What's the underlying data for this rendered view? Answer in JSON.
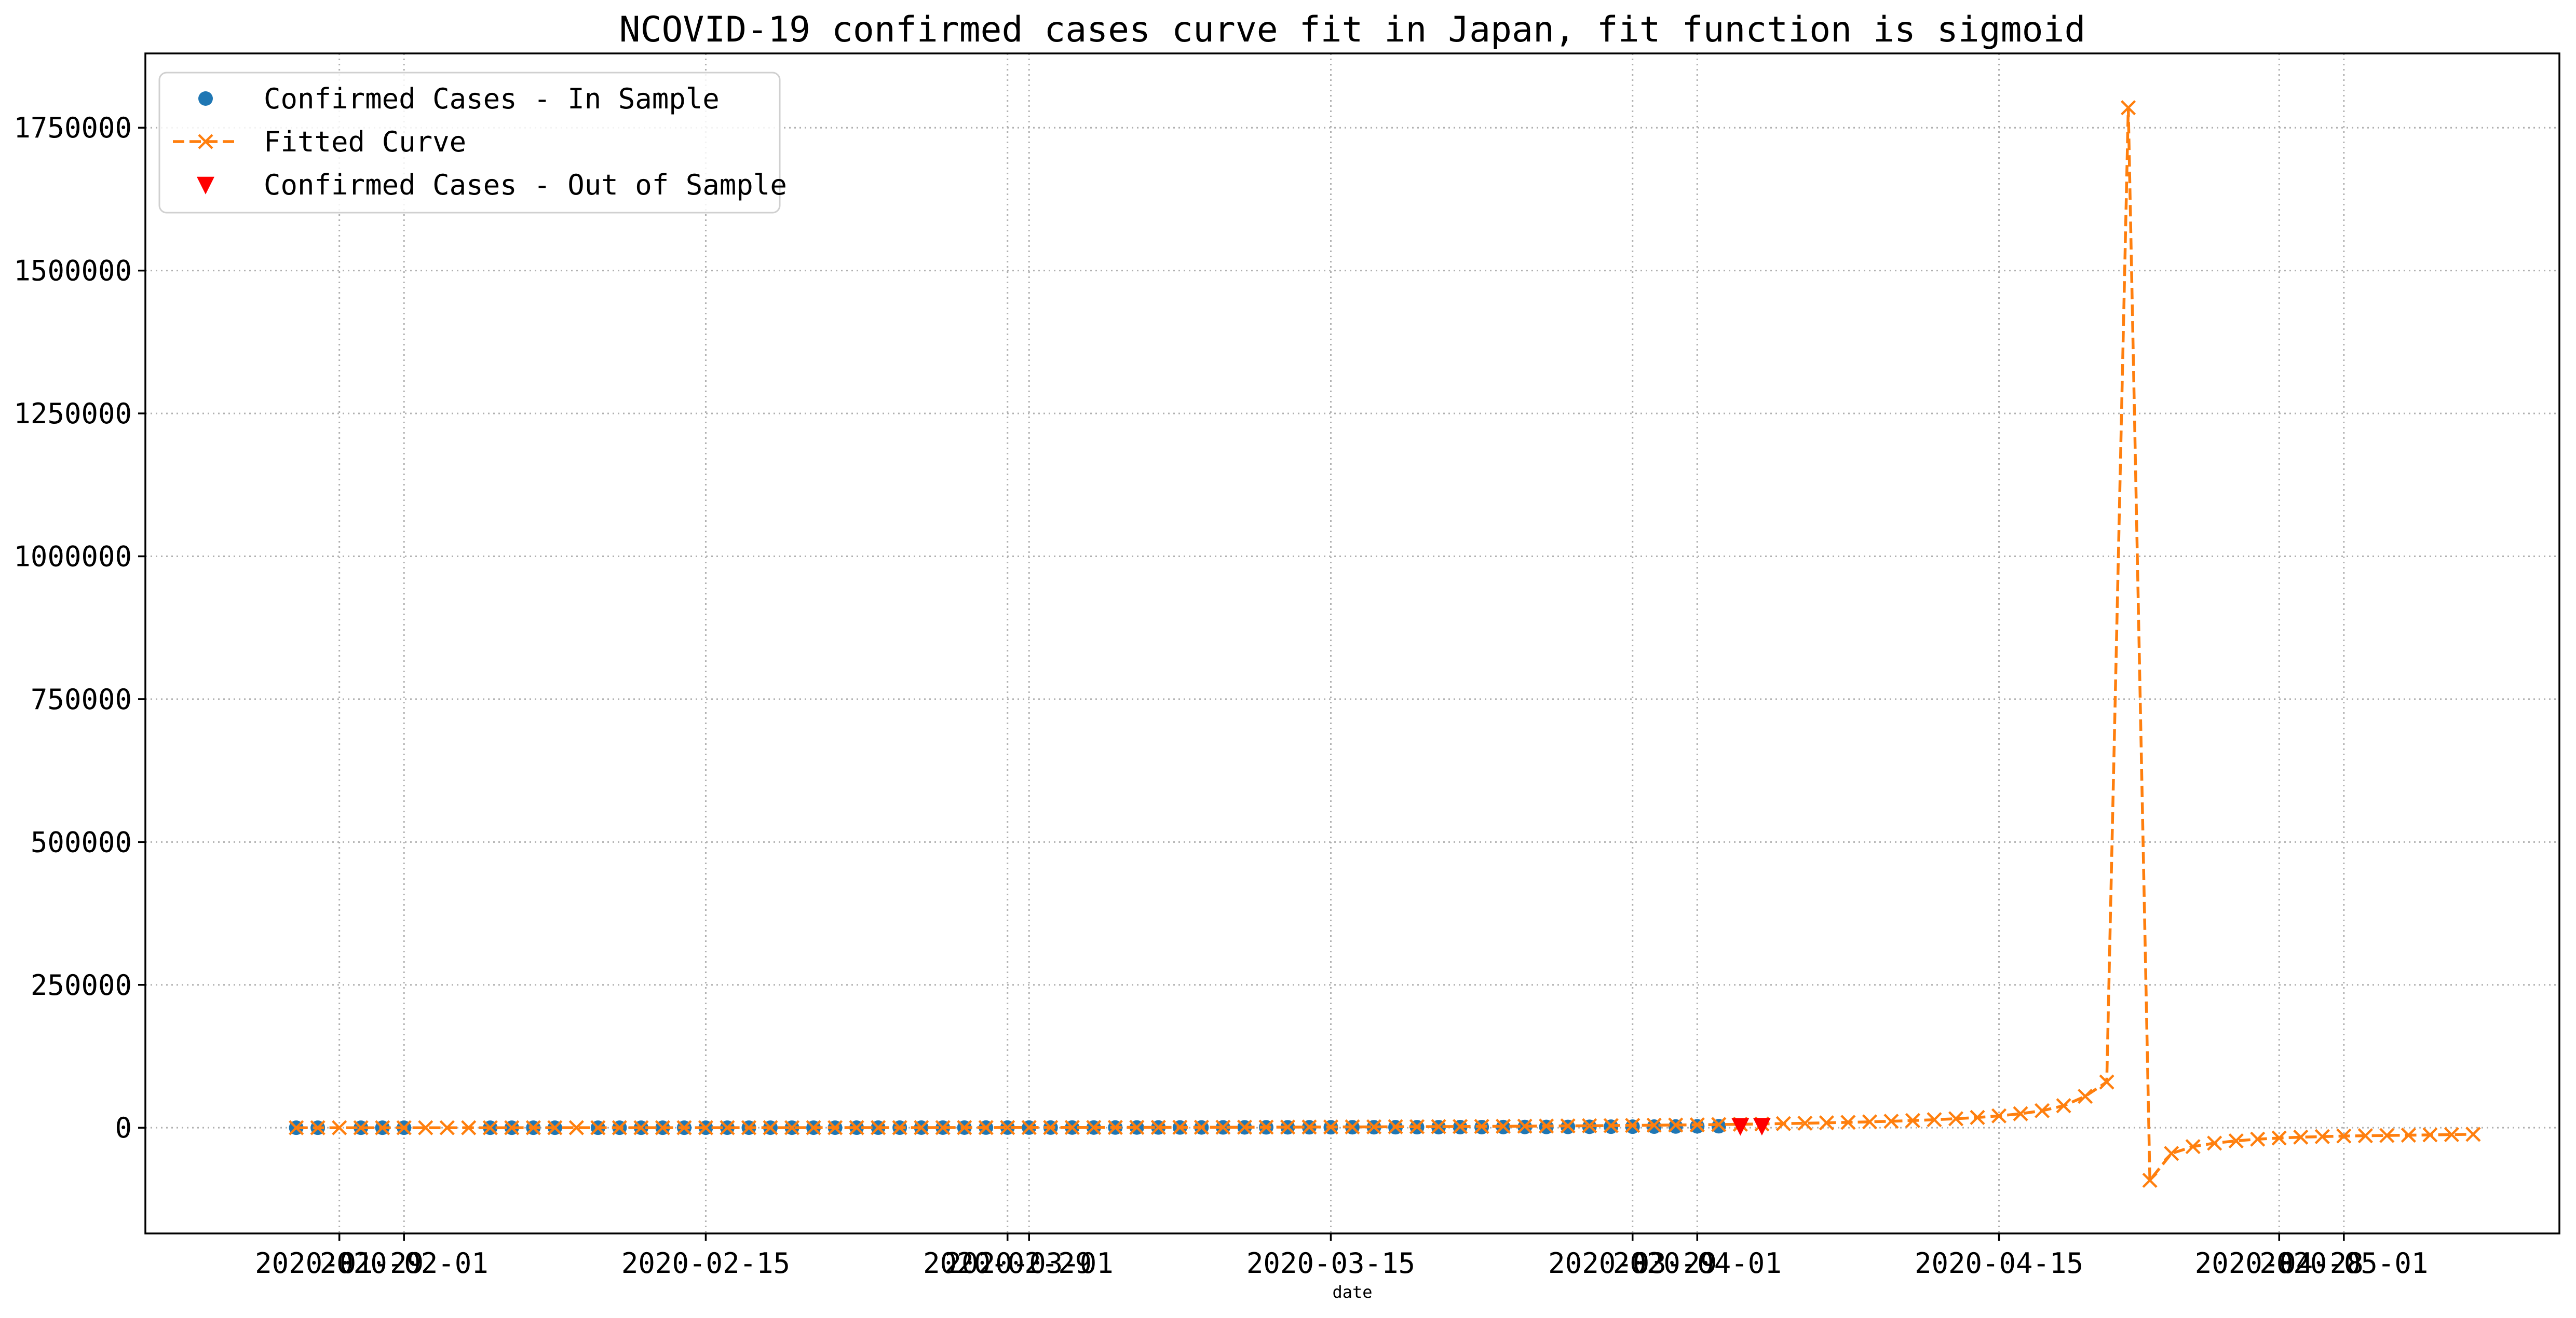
{
  "chart_data": {
    "type": "line",
    "title": "NCOVID-19 confirmed cases curve fit in Japan, fit function is sigmoid",
    "xlabel": "date",
    "ylabel": "",
    "grid": true,
    "legend_position": "top-left",
    "x_axis": {
      "type": "date",
      "range": [
        "2020-01-20",
        "2020-05-11"
      ],
      "tick_labels": [
        {
          "date": "2020-01-29",
          "label": "2020-01-29"
        },
        {
          "date": "2020-02-01",
          "label": "2020-02-01"
        },
        {
          "date": "2020-02-15",
          "label": "2020-02-15"
        },
        {
          "date": "2020-02-29",
          "label": "2020-02-29"
        },
        {
          "date": "2020-03-01",
          "label": "2020-03-01"
        },
        {
          "date": "2020-03-15",
          "label": "2020-03-15"
        },
        {
          "date": "2020-03-29",
          "label": "2020-03-29"
        },
        {
          "date": "2020-04-01",
          "label": "2020-04-01"
        },
        {
          "date": "2020-04-15",
          "label": "2020-04-15"
        },
        {
          "date": "2020-04-28",
          "label": "2020-04-28"
        },
        {
          "date": "2020-05-01",
          "label": "2020-05-01"
        }
      ]
    },
    "y_axis": {
      "range": [
        -185000,
        1880000
      ],
      "ticks": [
        0,
        250000,
        500000,
        750000,
        1000000,
        1250000,
        1500000,
        1750000
      ],
      "tick_labels": [
        "0",
        "250000",
        "500000",
        "750000",
        "1000000",
        "1250000",
        "1500000",
        "1750000"
      ]
    },
    "series": [
      {
        "name": "Confirmed Cases - In Sample",
        "color": "#1f77b4",
        "marker": "circle",
        "line": "none",
        "points": [
          [
            "2020-01-27",
            4
          ],
          [
            "2020-01-28",
            7
          ],
          [
            "2020-01-30",
            11
          ],
          [
            "2020-01-31",
            15
          ],
          [
            "2020-02-01",
            20
          ],
          [
            "2020-02-05",
            25
          ],
          [
            "2020-02-06",
            25
          ],
          [
            "2020-02-07",
            25
          ],
          [
            "2020-02-08",
            25
          ],
          [
            "2020-02-10",
            26
          ],
          [
            "2020-02-11",
            26
          ],
          [
            "2020-02-12",
            28
          ],
          [
            "2020-02-13",
            28
          ],
          [
            "2020-02-14",
            29
          ],
          [
            "2020-02-15",
            43
          ],
          [
            "2020-02-16",
            59
          ],
          [
            "2020-02-17",
            66
          ],
          [
            "2020-02-18",
            74
          ],
          [
            "2020-02-19",
            84
          ],
          [
            "2020-02-20",
            94
          ],
          [
            "2020-02-21",
            105
          ],
          [
            "2020-02-22",
            122
          ],
          [
            "2020-02-23",
            147
          ],
          [
            "2020-02-24",
            159
          ],
          [
            "2020-02-25",
            170
          ],
          [
            "2020-02-26",
            189
          ],
          [
            "2020-02-27",
            214
          ],
          [
            "2020-02-28",
            228
          ],
          [
            "2020-02-29",
            241
          ],
          [
            "2020-03-01",
            256
          ],
          [
            "2020-03-02",
            274
          ],
          [
            "2020-03-03",
            293
          ],
          [
            "2020-03-04",
            331
          ],
          [
            "2020-03-05",
            360
          ],
          [
            "2020-03-06",
            420
          ],
          [
            "2020-03-07",
            461
          ],
          [
            "2020-03-08",
            502
          ],
          [
            "2020-03-09",
            511
          ],
          [
            "2020-03-10",
            581
          ],
          [
            "2020-03-11",
            639
          ],
          [
            "2020-03-12",
            701
          ],
          [
            "2020-03-13",
            773
          ],
          [
            "2020-03-14",
            839
          ],
          [
            "2020-03-15",
            839
          ],
          [
            "2020-03-16",
            878
          ],
          [
            "2020-03-17",
            889
          ],
          [
            "2020-03-18",
            924
          ],
          [
            "2020-03-19",
            963
          ],
          [
            "2020-03-20",
            1007
          ],
          [
            "2020-03-21",
            1101
          ],
          [
            "2020-03-22",
            1128
          ],
          [
            "2020-03-23",
            1193
          ],
          [
            "2020-03-24",
            1307
          ],
          [
            "2020-03-25",
            1387
          ],
          [
            "2020-03-26",
            1468
          ],
          [
            "2020-03-27",
            1693
          ],
          [
            "2020-03-28",
            1866
          ],
          [
            "2020-03-29",
            1866
          ],
          [
            "2020-03-30",
            1953
          ],
          [
            "2020-03-31",
            2178
          ],
          [
            "2020-04-01",
            2495
          ],
          [
            "2020-04-02",
            2617
          ]
        ]
      },
      {
        "name": "Fitted Curve",
        "color": "#ff7f0e",
        "marker": "x",
        "line": "dashed",
        "points": [
          [
            "2020-01-27",
            2
          ],
          [
            "2020-01-28",
            3
          ],
          [
            "2020-01-29",
            4
          ],
          [
            "2020-01-30",
            6
          ],
          [
            "2020-01-31",
            9
          ],
          [
            "2020-02-01",
            12
          ],
          [
            "2020-02-02",
            16
          ],
          [
            "2020-02-03",
            20
          ],
          [
            "2020-02-04",
            24
          ],
          [
            "2020-02-05",
            28
          ],
          [
            "2020-02-06",
            32
          ],
          [
            "2020-02-07",
            36
          ],
          [
            "2020-02-08",
            40
          ],
          [
            "2020-02-09",
            44
          ],
          [
            "2020-02-10",
            48
          ],
          [
            "2020-02-11",
            53
          ],
          [
            "2020-02-12",
            58
          ],
          [
            "2020-02-13",
            64
          ],
          [
            "2020-02-14",
            70
          ],
          [
            "2020-02-15",
            77
          ],
          [
            "2020-02-16",
            85
          ],
          [
            "2020-02-17",
            94
          ],
          [
            "2020-02-18",
            104
          ],
          [
            "2020-02-19",
            115
          ],
          [
            "2020-02-20",
            127
          ],
          [
            "2020-02-21",
            141
          ],
          [
            "2020-02-22",
            156
          ],
          [
            "2020-02-23",
            173
          ],
          [
            "2020-02-24",
            192
          ],
          [
            "2020-02-25",
            213
          ],
          [
            "2020-02-26",
            236
          ],
          [
            "2020-02-27",
            262
          ],
          [
            "2020-02-28",
            290
          ],
          [
            "2020-02-29",
            321
          ],
          [
            "2020-03-01",
            355
          ],
          [
            "2020-03-02",
            393
          ],
          [
            "2020-03-03",
            434
          ],
          [
            "2020-03-04",
            479
          ],
          [
            "2020-03-05",
            528
          ],
          [
            "2020-03-06",
            582
          ],
          [
            "2020-03-07",
            640
          ],
          [
            "2020-03-08",
            703
          ],
          [
            "2020-03-09",
            771
          ],
          [
            "2020-03-10",
            845
          ],
          [
            "2020-03-11",
            925
          ],
          [
            "2020-03-12",
            1011
          ],
          [
            "2020-03-13",
            1104
          ],
          [
            "2020-03-14",
            1204
          ],
          [
            "2020-03-15",
            1312
          ],
          [
            "2020-03-16",
            1428
          ],
          [
            "2020-03-17",
            1553
          ],
          [
            "2020-03-18",
            1688
          ],
          [
            "2020-03-19",
            1833
          ],
          [
            "2020-03-20",
            1989
          ],
          [
            "2020-03-21",
            2157
          ],
          [
            "2020-03-22",
            2338
          ],
          [
            "2020-03-23",
            2533
          ],
          [
            "2020-03-24",
            2743
          ],
          [
            "2020-03-25",
            2970
          ],
          [
            "2020-03-26",
            3215
          ],
          [
            "2020-03-27",
            3480
          ],
          [
            "2020-03-28",
            3767
          ],
          [
            "2020-03-29",
            4078
          ],
          [
            "2020-03-30",
            4416
          ],
          [
            "2020-03-31",
            4783
          ],
          [
            "2020-04-01",
            5183
          ],
          [
            "2020-04-02",
            5620
          ],
          [
            "2020-04-03",
            6099
          ],
          [
            "2020-04-04",
            6626
          ],
          [
            "2020-04-05",
            7208
          ],
          [
            "2020-04-06",
            7854
          ],
          [
            "2020-04-07",
            8575
          ],
          [
            "2020-04-08",
            9386
          ],
          [
            "2020-04-09",
            10305
          ],
          [
            "2020-04-10",
            11360
          ],
          [
            "2020-04-11",
            12587
          ],
          [
            "2020-04-12",
            14038
          ],
          [
            "2020-04-13",
            15790
          ],
          [
            "2020-04-14",
            17960
          ],
          [
            "2020-04-15",
            20740
          ],
          [
            "2020-04-16",
            24470
          ],
          [
            "2020-04-17",
            29840
          ],
          [
            "2020-04-18",
            38500
          ],
          [
            "2020-04-19",
            55000
          ],
          [
            "2020-04-20",
            80000
          ],
          [
            "2020-04-21",
            1785000
          ],
          [
            "2020-04-22",
            -92000
          ],
          [
            "2020-04-23",
            -45000
          ],
          [
            "2020-04-24",
            -33000
          ],
          [
            "2020-04-25",
            -27000
          ],
          [
            "2020-04-26",
            -23000
          ],
          [
            "2020-04-27",
            -20000
          ],
          [
            "2020-04-28",
            -18000
          ],
          [
            "2020-04-29",
            -16500
          ],
          [
            "2020-04-30",
            -15500
          ],
          [
            "2020-05-01",
            -14500
          ],
          [
            "2020-05-02",
            -14000
          ],
          [
            "2020-05-03",
            -13500
          ],
          [
            "2020-05-04",
            -13000
          ],
          [
            "2020-05-05",
            -12500
          ],
          [
            "2020-05-06",
            -12000
          ],
          [
            "2020-05-07",
            -11500
          ]
        ]
      },
      {
        "name": "Confirmed Cases - Out of Sample",
        "color": "#ff0000",
        "marker": "triangle-down",
        "line": "none",
        "points": [
          [
            "2020-04-03",
            2935
          ],
          [
            "2020-04-04",
            3271
          ]
        ]
      }
    ]
  }
}
